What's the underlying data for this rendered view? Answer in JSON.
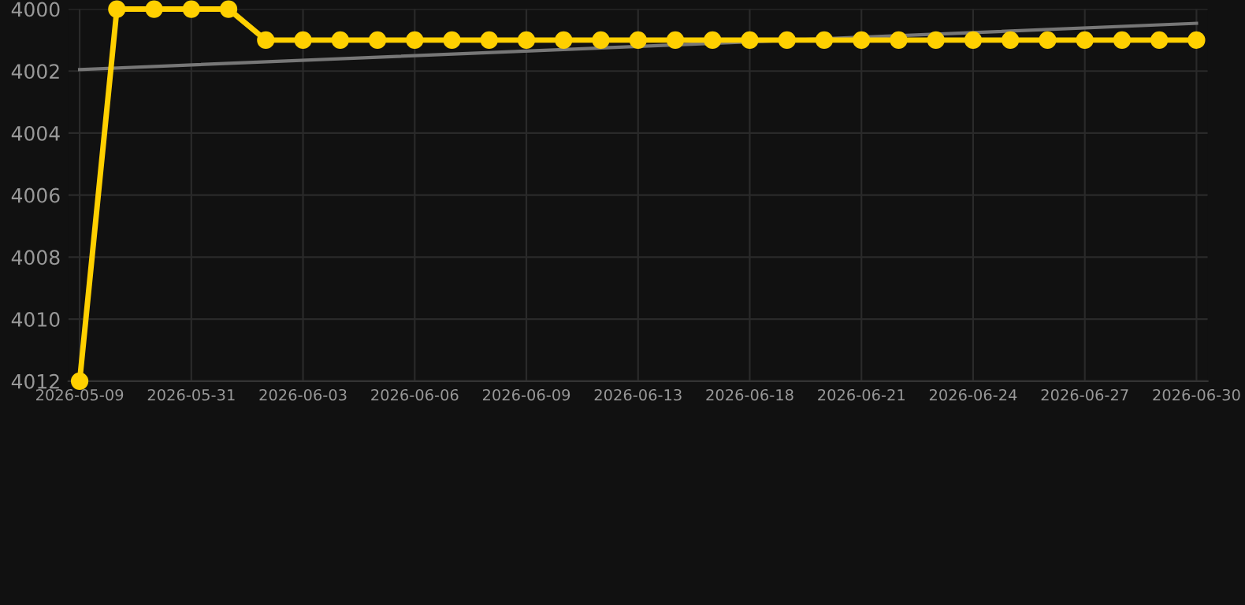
{
  "chart_data": {
    "type": "line",
    "categories": [
      "2026-05-09",
      null,
      null,
      "2026-05-31",
      null,
      null,
      "2026-06-03",
      null,
      null,
      "2026-06-06",
      null,
      null,
      "2026-06-09",
      null,
      null,
      "2026-06-13",
      null,
      null,
      "2026-06-18",
      null,
      null,
      "2026-06-21",
      null,
      null,
      "2026-06-24",
      null,
      null,
      "2026-06-27",
      null,
      null,
      "2026-06-30"
    ],
    "series": [
      {
        "color": "#ffd000",
        "marker": "circle",
        "values": [
          4012,
          4000,
          4000,
          4000,
          4000,
          4001,
          4001,
          4001,
          4001,
          4001,
          4001,
          4001,
          4001,
          4001,
          4001,
          4001,
          4001,
          4001,
          4001,
          4001,
          4001,
          4001,
          4001,
          4001,
          4001,
          4001,
          4001,
          4001,
          4001,
          4001,
          4001
        ]
      },
      {
        "color": "#777777",
        "marker": "none",
        "values": [
          4001.95,
          null,
          null,
          null,
          null,
          null,
          null,
          null,
          null,
          null,
          null,
          null,
          null,
          null,
          null,
          null,
          null,
          null,
          null,
          null,
          null,
          null,
          null,
          null,
          null,
          null,
          null,
          null,
          null,
          null,
          4000.46
        ]
      }
    ],
    "ylim": [
      4012,
      4000
    ],
    "yticks": [
      4000,
      4002,
      4004,
      4006,
      4008,
      4010,
      4012
    ],
    "grid": true,
    "line_style": "solid"
  }
}
